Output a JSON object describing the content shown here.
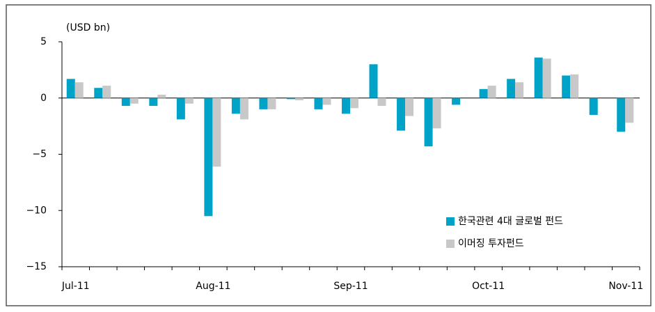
{
  "chart_data": {
    "type": "bar",
    "y_label": "(USD bn)",
    "categories": [
      "Jul-11",
      null,
      null,
      null,
      null,
      "Aug-11",
      null,
      null,
      null,
      null,
      "Sep-11",
      null,
      null,
      null,
      null,
      "Oct-11",
      null,
      null,
      null,
      null,
      "Nov-11"
    ],
    "series": [
      {
        "name": "한국관련 4대 글로벌 펀드",
        "color": "#00a3c8",
        "values": [
          1.7,
          0.9,
          -0.7,
          -0.7,
          -1.9,
          -10.5,
          -1.4,
          -1.0,
          -0.1,
          -1.0,
          -1.4,
          3.0,
          -2.9,
          -4.3,
          -0.6,
          0.8,
          1.7,
          3.6,
          2.0,
          -1.5,
          -3.0
        ]
      },
      {
        "name": "이머징 투자펀드",
        "color": "#c8c8c8",
        "values": [
          1.4,
          1.1,
          -0.5,
          0.3,
          -0.5,
          -6.1,
          -1.9,
          -1.0,
          -0.2,
          -0.6,
          -0.9,
          -0.7,
          -1.6,
          -2.7,
          0.0,
          1.1,
          1.4,
          3.5,
          2.1,
          0.0,
          -2.2
        ]
      }
    ],
    "ylim": [
      -15,
      5
    ],
    "yticks": [
      5,
      0,
      {
        "value": -5,
        "label": "−5"
      },
      {
        "value": -10,
        "label": "−10"
      },
      {
        "value": -15,
        "label": "−15"
      }
    ],
    "legend": "lower right"
  }
}
